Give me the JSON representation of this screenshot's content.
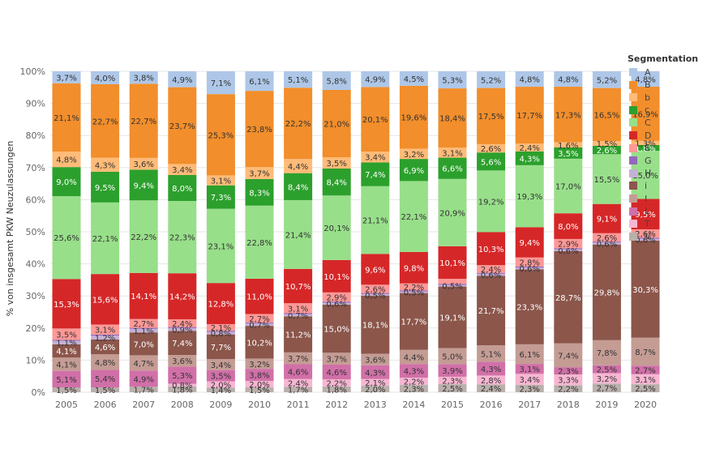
{
  "chart_data": {
    "type": "bar",
    "stacked": true,
    "title": "",
    "xlabel": "",
    "ylabel": "% von insgesamt PKW Neuzulassungen",
    "ylim": [
      0,
      100
    ],
    "yticks": [
      "0%",
      "10%",
      "20%",
      "30%",
      "40%",
      "50%",
      "60%",
      "70%",
      "80%",
      "90%",
      "100%"
    ],
    "categories": [
      "2005",
      "2006",
      "2007",
      "2008",
      "2009",
      "2010",
      "2011",
      "2012",
      "2013",
      "2014",
      "2015",
      "2016",
      "2017",
      "2018",
      "2019",
      "2020"
    ],
    "legend_title": "Segmentation",
    "legend_position": "right",
    "series": [
      {
        "name": "V",
        "color": "#bab0ac",
        "values": [
          1.5,
          1.5,
          1.7,
          1.8,
          1.4,
          1.5,
          1.7,
          1.8,
          2.0,
          2.3,
          2.5,
          2.4,
          2.3,
          2.2,
          2.7,
          2.5
        ],
        "labels": [
          "1,5%",
          "1,5%",
          "1,7%",
          "1,8%",
          "1,4%",
          "1,5%",
          "1,7%",
          "1,8%",
          "2,0%",
          "2,3%",
          "2,5%",
          "2,4%",
          "2,3%",
          "2,2%",
          "2,7%",
          "2,5%"
        ]
      },
      {
        "name": "T",
        "color": "#f7b6d2",
        "values": [
          0.0,
          0.0,
          0.0,
          0.8,
          2.0,
          2.0,
          2.4,
          2.2,
          2.1,
          2.2,
          2.3,
          2.8,
          3.4,
          3.3,
          3.2,
          3.1
        ],
        "labels": [
          "",
          "",
          "",
          "0,8%",
          "2,0%",
          "2,0%",
          "2,4%",
          "2,2%",
          "2,1%",
          "2,2%",
          "2,3%",
          "2,8%",
          "3,4%",
          "3,3%",
          "3,2%",
          "3,1%"
        ]
      },
      {
        "name": "L",
        "color": "#d170a8",
        "values": [
          5.1,
          5.4,
          4.9,
          5.3,
          3.5,
          3.8,
          4.6,
          4.6,
          4.3,
          4.3,
          3.9,
          4.3,
          3.1,
          2.3,
          2.5,
          2.7
        ],
        "labels": [
          "5,1%",
          "5,4%",
          "4,9%",
          "5,3%",
          "3,5%",
          "3,8%",
          "4,6%",
          "4,6%",
          "4,3%",
          "4,3%",
          "3,9%",
          "4,3%",
          "3,1%",
          "2,3%",
          "2,5%",
          "2,7%"
        ]
      },
      {
        "name": "I",
        "color": "#c49c94",
        "values": [
          4.1,
          4.8,
          4.7,
          3.6,
          3.4,
          3.2,
          3.7,
          3.7,
          3.6,
          4.4,
          5.0,
          5.1,
          6.1,
          7.4,
          7.8,
          8.7
        ],
        "labels": [
          "4,1%",
          "4,8%",
          "4,7%",
          "3,6%",
          "3,4%",
          "3,2%",
          "3,7%",
          "3,7%",
          "3,6%",
          "4,4%",
          "5,0%",
          "5,1%",
          "6,1%",
          "7,4%",
          "7,8%",
          "8,7%"
        ]
      },
      {
        "name": "i",
        "color": "#8c564b",
        "values": [
          4.1,
          4.6,
          7.0,
          7.4,
          7.7,
          10.2,
          11.2,
          15.0,
          18.1,
          17.7,
          19.1,
          21.7,
          23.3,
          28.7,
          29.8,
          30.3
        ],
        "labels": [
          "4,1%",
          "4,6%",
          "7,0%",
          "7,4%",
          "7,7%",
          "10,2%",
          "11,2%",
          "15,0%",
          "18,1%",
          "17,7%",
          "19,1%",
          "21,7%",
          "23,3%",
          "28,7%",
          "29,8%",
          "30,3%"
        ]
      },
      {
        "name": "H",
        "color": "#c5b0d5",
        "values": [
          1.1,
          1.2,
          1.1,
          0.9,
          0.8,
          0.7,
          0.7,
          0.6,
          0.5,
          0.5,
          0.5,
          0.6,
          0.6,
          0.6,
          0.6,
          0.6
        ],
        "labels": [
          "1,1%",
          "1,2%",
          "1,1%",
          "0,9%",
          "0,8%",
          "0,7%",
          "0,7%",
          "0,6%",
          "0,5%",
          "0,5%",
          "0,5%",
          "0,6%",
          "0,6%",
          "0,6%",
          "0,6%",
          "0,6%"
        ]
      },
      {
        "name": "G",
        "color": "#9467bd",
        "values": [
          0.3,
          0.3,
          0.3,
          0.3,
          0.3,
          0.3,
          0.3,
          0.3,
          0.3,
          0.3,
          0.3,
          0.3,
          0.3,
          0.3,
          0.3,
          0.3
        ],
        "labels": [
          "",
          "",
          "",
          "",
          "",
          "",
          "",
          "",
          "",
          "",
          "",
          "",
          "",
          "",
          "",
          ""
        ]
      },
      {
        "name": "E",
        "color": "#ff9896",
        "values": [
          3.5,
          3.1,
          2.7,
          2.4,
          2.1,
          2.7,
          3.1,
          2.9,
          2.6,
          2.2,
          1.6,
          2.4,
          2.8,
          2.9,
          2.6,
          2.6
        ],
        "labels": [
          "3,5%",
          "3,1%",
          "2,7%",
          "2,4%",
          "2,1%",
          "2,7%",
          "3,1%",
          "2,9%",
          "2,6%",
          "2,2%",
          "",
          "2,4%",
          "2,8%",
          "2,9%",
          "2,6%",
          "2,6%"
        ]
      },
      {
        "name": "D",
        "color": "#d62728",
        "values": [
          15.3,
          15.6,
          14.1,
          14.2,
          12.8,
          11.0,
          10.7,
          10.1,
          9.6,
          9.8,
          10.1,
          10.3,
          9.4,
          8.0,
          9.1,
          9.5
        ],
        "labels": [
          "15,3%",
          "15,6%",
          "14,1%",
          "14,2%",
          "12,8%",
          "11,0%",
          "10,7%",
          "10,1%",
          "9,6%",
          "9,8%",
          "10,1%",
          "10,3%",
          "9,4%",
          "8,0%",
          "9,1%",
          "9,5%"
        ]
      },
      {
        "name": "C",
        "color": "#98df8a",
        "values": [
          25.6,
          22.1,
          22.2,
          22.3,
          23.1,
          22.8,
          21.4,
          20.1,
          21.1,
          22.1,
          20.9,
          19.2,
          19.3,
          17.0,
          15.5,
          15.0
        ],
        "labels": [
          "25,6%",
          "22,1%",
          "22,2%",
          "22,3%",
          "23,1%",
          "22,8%",
          "21,4%",
          "20,1%",
          "21,1%",
          "22,1%",
          "20,9%",
          "19,2%",
          "19,3%",
          "17,0%",
          "15,5%",
          "15,0%"
        ]
      },
      {
        "name": "c",
        "color": "#2ca02c",
        "values": [
          9.0,
          9.5,
          9.4,
          8.0,
          7.3,
          8.3,
          8.4,
          8.4,
          7.4,
          6.9,
          6.6,
          5.6,
          4.3,
          3.5,
          2.6,
          1.8
        ],
        "labels": [
          "9,0%",
          "9,5%",
          "9,4%",
          "8,0%",
          "7,3%",
          "8,3%",
          "8,4%",
          "8,4%",
          "7,4%",
          "6,9%",
          "6,6%",
          "5,6%",
          "4,3%",
          "3,5%",
          "2,6%",
          "1,8%"
        ]
      },
      {
        "name": "b",
        "color": "#ffbb78",
        "values": [
          4.8,
          4.3,
          3.6,
          3.4,
          3.1,
          3.7,
          4.4,
          3.5,
          3.4,
          3.2,
          3.1,
          2.6,
          2.4,
          1.6,
          1.5,
          1.3
        ],
        "labels": [
          "4,8%",
          "4,3%",
          "3,6%",
          "3,4%",
          "3,1%",
          "3,7%",
          "4,4%",
          "3,5%",
          "3,4%",
          "3,2%",
          "3,1%",
          "2,6%",
          "2,4%",
          "1,6%",
          "1,5%",
          "1,3%"
        ]
      },
      {
        "name": "B",
        "color": "#f28e2b",
        "values": [
          21.1,
          22.7,
          22.7,
          23.7,
          25.3,
          23.8,
          22.2,
          21.0,
          20.1,
          19.6,
          18.4,
          17.5,
          17.7,
          17.3,
          16.5,
          16.9
        ],
        "labels": [
          "21,1%",
          "22,7%",
          "22,7%",
          "23,7%",
          "25,3%",
          "23,8%",
          "22,2%",
          "21,0%",
          "20,1%",
          "19,6%",
          "18,4%",
          "17,5%",
          "17,7%",
          "17,3%",
          "16,5%",
          "16,9%"
        ]
      },
      {
        "name": "A",
        "color": "#aec7e8",
        "values": [
          3.7,
          4.0,
          3.8,
          4.9,
          7.1,
          6.1,
          5.1,
          5.8,
          4.9,
          4.5,
          5.3,
          5.2,
          4.8,
          4.8,
          5.2,
          4.8
        ],
        "labels": [
          "3,7%",
          "4,0%",
          "3,8%",
          "4,9%",
          "7,1%",
          "6,1%",
          "5,1%",
          "5,8%",
          "4,9%",
          "4,5%",
          "5,3%",
          "5,2%",
          "4,8%",
          "4,8%",
          "5,2%",
          "4,8%"
        ]
      }
    ],
    "legend_order": [
      "A",
      "B",
      "b",
      "c",
      "C",
      "D",
      "E",
      "G",
      "H",
      "i",
      "I",
      "L",
      "T",
      "V"
    ]
  }
}
